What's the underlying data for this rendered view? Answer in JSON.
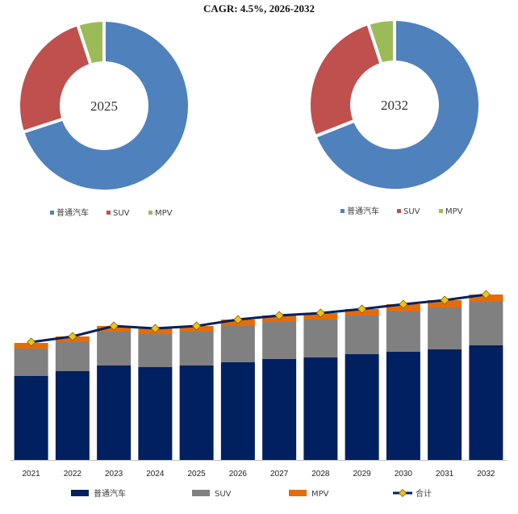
{
  "title": "CAGR: 4.5%, 2026-2032",
  "colors": {
    "pie_car": "#4F81BD",
    "pie_suv": "#C0504D",
    "pie_mpv": "#9BBB59",
    "bar_car": "#002060",
    "bar_suv": "#808080",
    "bar_mpv": "#E46C0A",
    "total_line": "#002060",
    "total_marker": "#F2C314"
  },
  "chart_data": [
    {
      "type": "pie",
      "style": "donut",
      "center_label": "2025",
      "categories": [
        "普通汽车",
        "SUV",
        "MPV"
      ],
      "values": [
        70,
        25,
        5
      ],
      "legend_position": "bottom"
    },
    {
      "type": "pie",
      "style": "donut",
      "center_label": "2032",
      "categories": [
        "普通汽车",
        "SUV",
        "MPV"
      ],
      "values": [
        69,
        26,
        5
      ],
      "legend_position": "bottom"
    },
    {
      "type": "bar",
      "stacked": true,
      "categories": [
        "2021",
        "2022",
        "2023",
        "2024",
        "2025",
        "2026",
        "2027",
        "2028",
        "2029",
        "2030",
        "2031",
        "2032"
      ],
      "series": [
        {
          "name": "普通汽车",
          "values": [
            104,
            110,
            117,
            115,
            117,
            121,
            125,
            127,
            131,
            134,
            137,
            142
          ]
        },
        {
          "name": "SUV",
          "values": [
            34,
            36,
            42,
            41,
            42,
            45,
            46,
            47,
            48,
            50,
            52,
            54
          ]
        },
        {
          "name": "MPV",
          "values": [
            7,
            7,
            7,
            7,
            7,
            8,
            8,
            8,
            8,
            9,
            9,
            9
          ]
        }
      ],
      "line": {
        "name": "合计",
        "values": [
          146,
          153,
          166,
          163,
          166,
          174,
          179,
          182,
          187,
          193,
          198,
          205
        ]
      },
      "ylim": [
        0,
        230
      ],
      "legend_position": "bottom"
    }
  ]
}
